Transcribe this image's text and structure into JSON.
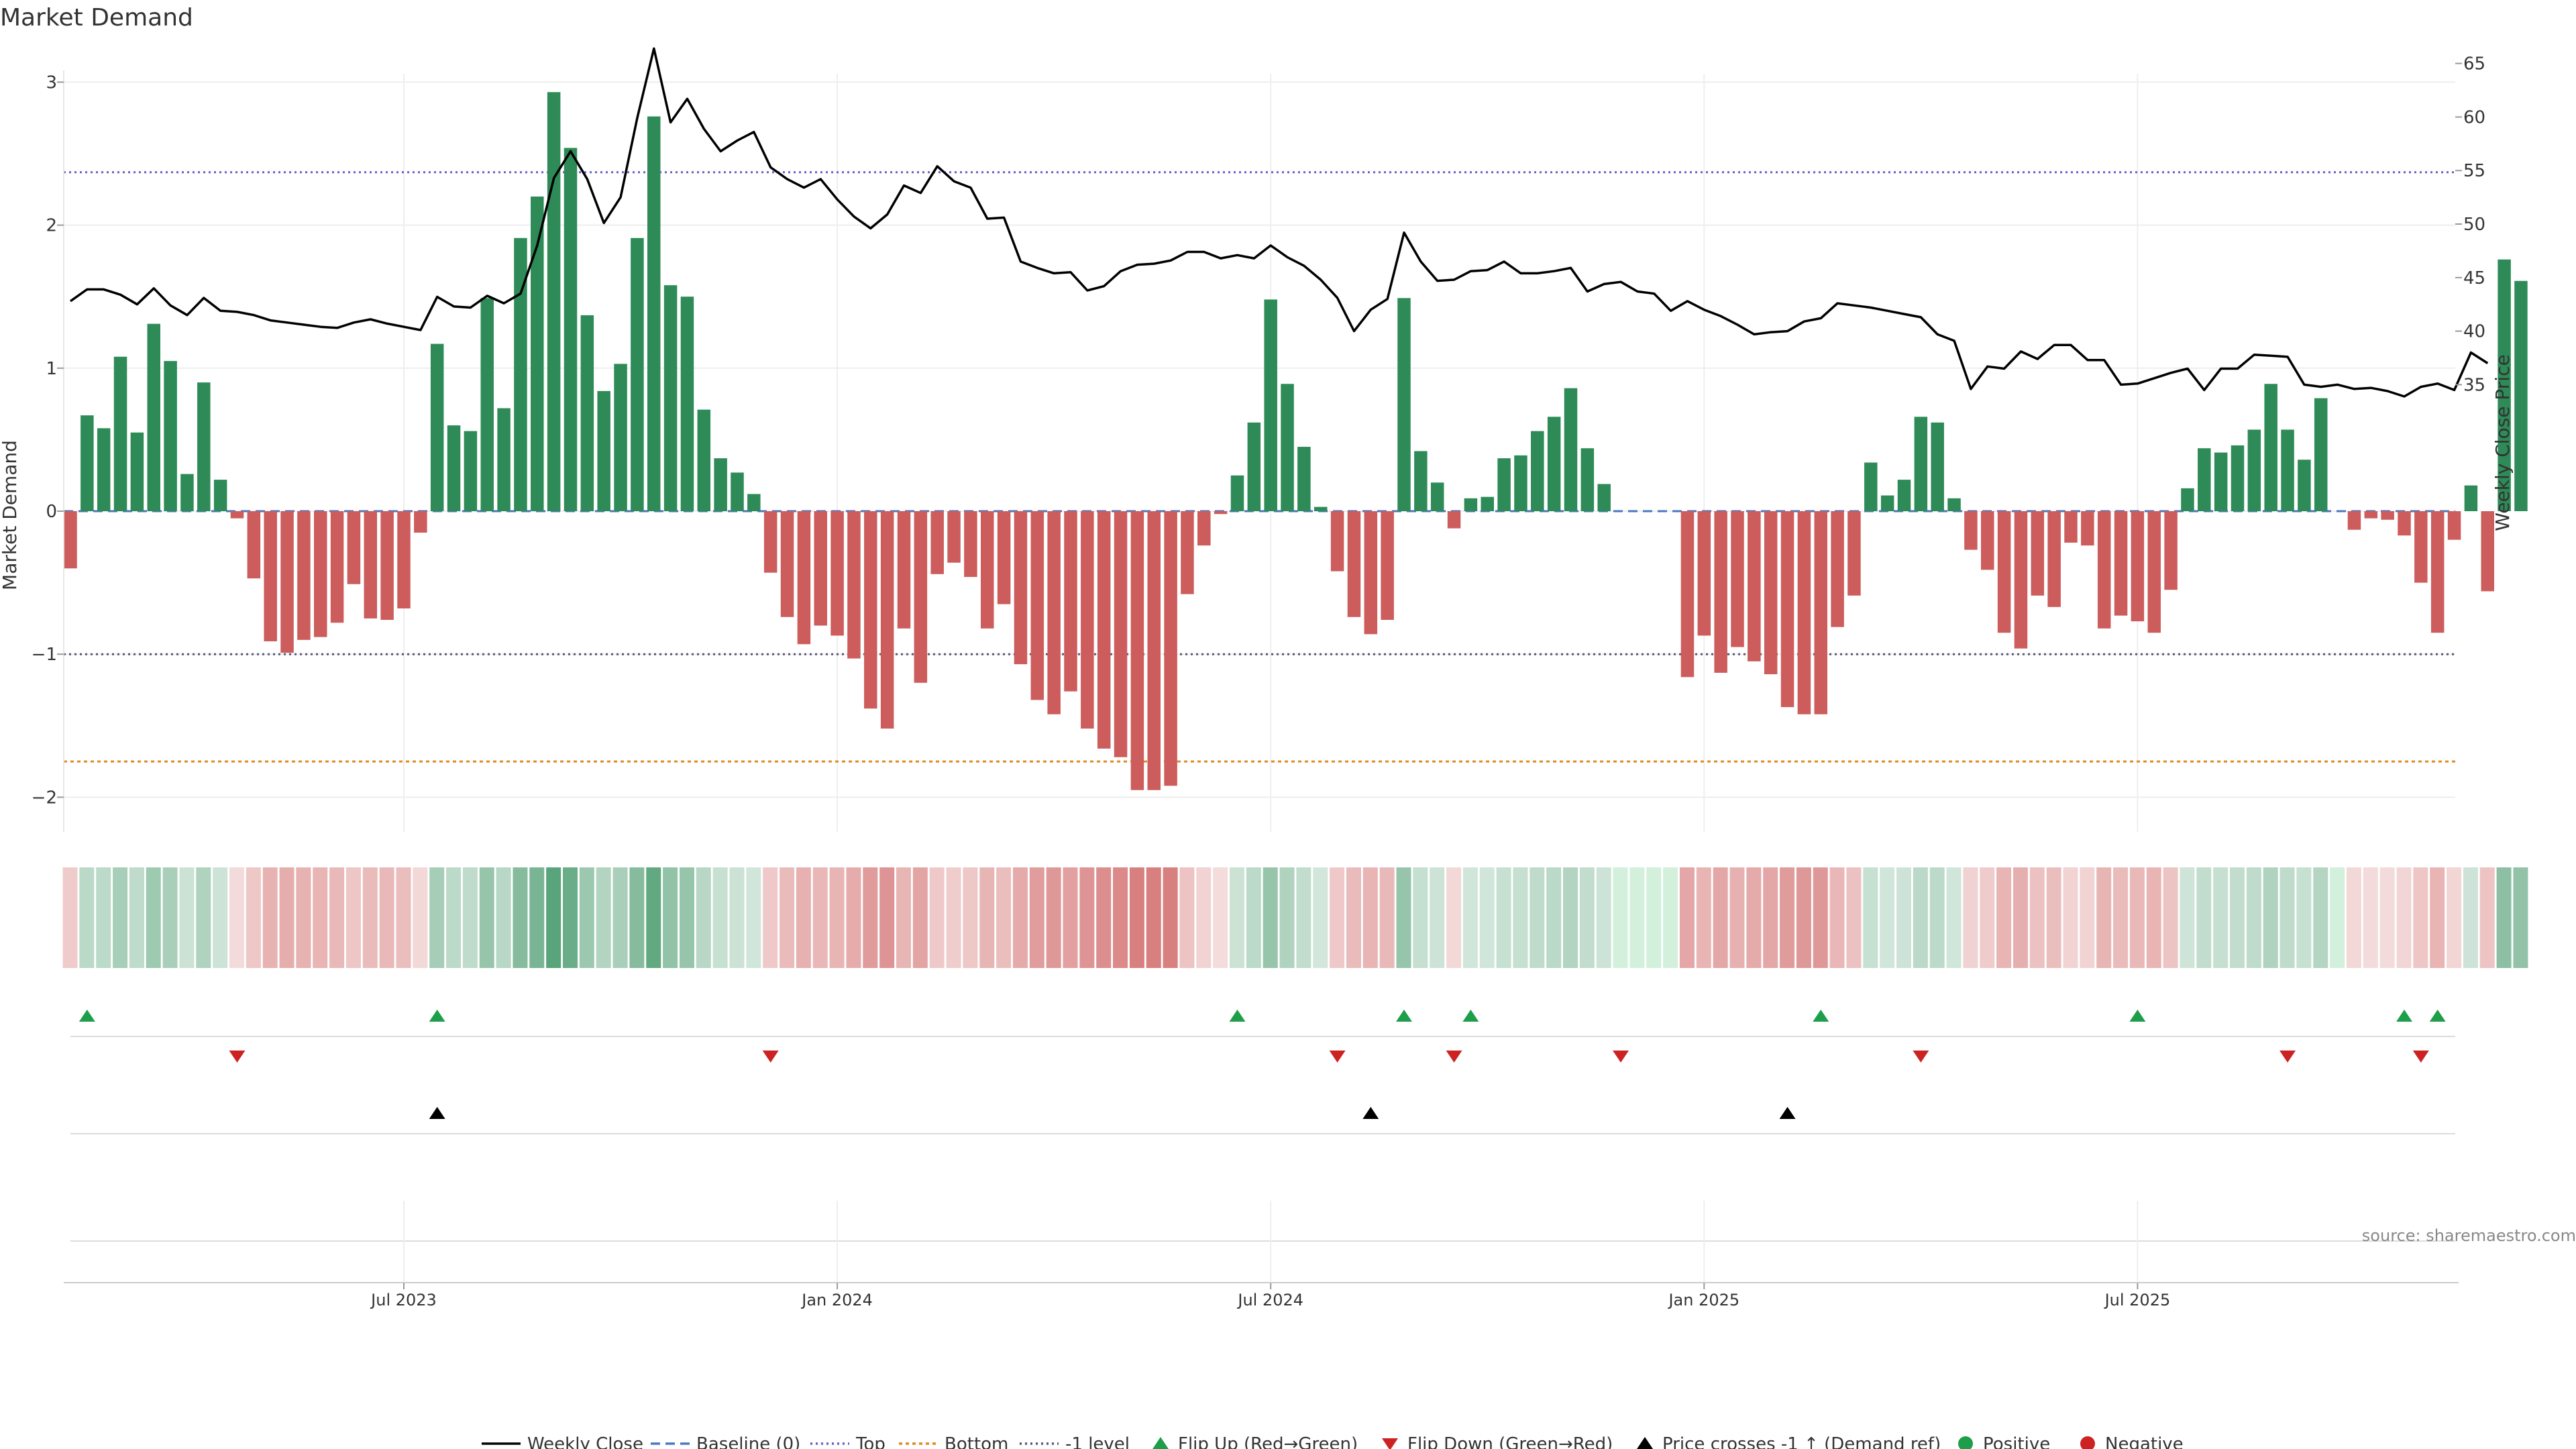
{
  "colors": {
    "positive": "#2e8b57",
    "negative": "#cd5c5c",
    "price": "#000000",
    "baseline": "#4a78c2",
    "top": "#6a5acd",
    "bottom": "#e08a20",
    "minus_one": "#555577",
    "flip_up": "#1e9e4a",
    "flip_down": "#cc2222",
    "cross": "#000000",
    "grid": "#eeeeee",
    "text": "#333333",
    "source": "#888888"
  },
  "chart_data": {
    "type": "bar",
    "title": "Market Demand",
    "ylabel": "Market Demand",
    "y2label": "Weekly Close Price",
    "ylim": [
      -2.2,
      3.1
    ],
    "y2lim": [
      32.8,
      67.5
    ],
    "yticks": [
      -2,
      -1,
      0,
      1,
      2,
      3
    ],
    "ytick_labels": [
      "−2",
      "−1",
      "0",
      "1",
      "2",
      "3"
    ],
    "y2ticks": [
      35,
      40,
      45,
      50,
      55,
      60,
      65
    ],
    "y2tick_labels": [
      "35",
      "40",
      "45",
      "50",
      "55",
      "60",
      "65"
    ],
    "xticks": [
      {
        "label": "Jul 2023",
        "week": 20
      },
      {
        "label": "Jan 2024",
        "week": 46
      },
      {
        "label": "Jul 2024",
        "week": 72
      },
      {
        "label": "Jan 2025",
        "week": 98
      },
      {
        "label": "Jul 2025",
        "week": 124
      }
    ],
    "reference_lines": {
      "baseline": 0,
      "top": 2.37,
      "bottom": -1.75,
      "minus_one": -1
    },
    "demand": [
      -0.4,
      0.67,
      0.58,
      1.08,
      0.55,
      1.31,
      1.05,
      0.26,
      0.9,
      0.22,
      -0.05,
      -0.47,
      -0.91,
      -0.99,
      -0.9,
      -0.88,
      -0.78,
      -0.51,
      -0.75,
      -0.76,
      -0.68,
      -0.15,
      1.17,
      0.6,
      0.56,
      1.49,
      0.72,
      1.91,
      2.2,
      2.93,
      2.54,
      1.37,
      0.84,
      1.03,
      1.91,
      2.76,
      1.58,
      1.5,
      0.71,
      0.37,
      0.27,
      0.12,
      -0.43,
      -0.74,
      -0.93,
      -0.8,
      -0.87,
      -1.03,
      -1.38,
      -1.52,
      -0.82,
      -1.2,
      -0.44,
      -0.36,
      -0.46,
      -0.82,
      -0.65,
      -1.07,
      -1.32,
      -1.42,
      -1.26,
      -1.52,
      -1.66,
      -1.72,
      -1.95,
      -1.95,
      -1.92,
      -0.58,
      -0.24,
      -0.02,
      0.25,
      0.62,
      1.48,
      0.89,
      0.45,
      0.03,
      -0.42,
      -0.74,
      -0.86,
      -0.76,
      1.49,
      0.42,
      0.2,
      -0.12,
      0.09,
      0.1,
      0.37,
      0.39,
      0.56,
      0.66,
      0.86,
      0.44,
      0.19,
      0,
      0,
      0,
      0,
      -1.16,
      -0.87,
      -1.13,
      -0.95,
      -1.05,
      -1.14,
      -1.37,
      -1.42,
      -1.42,
      -0.81,
      -0.59,
      0.34,
      0.11,
      0.22,
      0.66,
      0.62,
      0.09,
      -0.27,
      -0.41,
      -0.85,
      -0.96,
      -0.59,
      -0.67,
      -0.22,
      -0.24,
      -0.82,
      -0.73,
      -0.77,
      -0.85,
      -0.55,
      0.16,
      0.44,
      0.41,
      0.46,
      0.57,
      0.89,
      0.57,
      0.36,
      0.79,
      0,
      -0.13,
      -0.05,
      -0.06,
      -0.17,
      -0.5,
      -0.85,
      -0.2,
      0.18,
      -0.56,
      1.76,
      1.61
    ],
    "price": [
      42.8,
      43.9,
      43.9,
      43.4,
      42.5,
      44.0,
      42.4,
      41.5,
      43.1,
      41.9,
      41.8,
      41.5,
      41.0,
      40.8,
      40.6,
      40.4,
      40.3,
      40.8,
      41.1,
      40.7,
      40.4,
      40.1,
      43.2,
      42.3,
      42.2,
      43.3,
      42.6,
      43.5,
      48.0,
      54.3,
      56.8,
      54.2,
      50.1,
      52.5,
      59.9,
      66.4,
      59.5,
      61.7,
      58.9,
      56.8,
      57.8,
      58.6,
      55.3,
      54.2,
      53.4,
      54.2,
      52.3,
      50.7,
      49.6,
      50.9,
      53.6,
      52.9,
      55.4,
      54.0,
      53.4,
      50.5,
      50.6,
      46.5,
      45.9,
      45.4,
      45.5,
      43.8,
      44.2,
      45.6,
      46.2,
      46.3,
      46.6,
      47.4,
      47.4,
      46.8,
      47.1,
      46.8,
      48.0,
      46.9,
      46.1,
      44.8,
      43.1,
      40.0,
      42.0,
      43.0,
      49.2,
      46.5,
      44.7,
      44.8,
      45.6,
      45.7,
      46.5,
      45.4,
      45.4,
      45.6,
      45.9,
      43.7,
      44.4,
      44.6,
      43.7,
      43.5,
      41.9,
      42.8,
      42.0,
      41.4,
      40.6,
      39.7,
      39.9,
      40.0,
      40.9,
      41.2,
      42.6,
      42.4,
      42.2,
      41.9,
      41.6,
      41.3,
      39.7,
      39.1,
      34.6,
      36.7,
      36.5,
      38.1,
      37.4,
      38.7,
      38.7,
      37.3,
      37.3,
      35.0,
      35.1,
      35.6,
      36.1,
      36.5,
      34.5,
      36.5,
      36.5,
      37.8,
      37.7,
      37.6,
      35.0,
      34.8,
      35.0,
      34.6,
      34.7,
      34.4,
      33.9,
      34.8,
      35.1,
      34.5,
      38.0,
      37.0
    ],
    "flip_up_weeks": [
      1,
      22,
      70,
      80,
      84,
      105,
      124,
      140,
      142
    ],
    "flip_down_weeks": [
      10,
      42,
      76,
      83,
      93,
      111,
      133,
      141
    ],
    "price_cross_weeks": [
      22,
      78,
      103
    ],
    "legend": [
      "Weekly Close",
      "Baseline (0)",
      "Top",
      "Bottom",
      "-1 level",
      "Flip Up (Red→Green)",
      "Flip Down (Green→Red)",
      "Price crosses -1 ↑ (Demand ref)",
      "Positive",
      "Negative"
    ],
    "legend_position": "bottom",
    "source": "source: sharemaestro.com"
  }
}
